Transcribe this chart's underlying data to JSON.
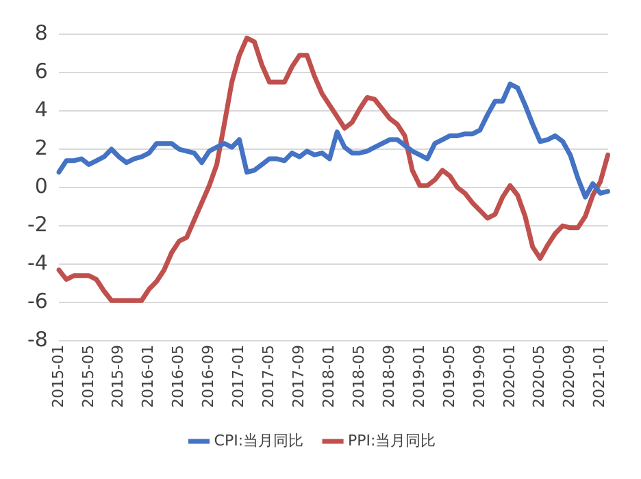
{
  "chart_data": {
    "type": "line",
    "categories": [
      "2015-01",
      null,
      null,
      null,
      "2015-05",
      null,
      null,
      null,
      "2015-09",
      null,
      null,
      null,
      "2016-01",
      null,
      null,
      null,
      "2016-05",
      null,
      null,
      null,
      "2016-09",
      null,
      null,
      null,
      "2017-01",
      null,
      null,
      null,
      "2017-05",
      null,
      null,
      null,
      "2017-09",
      null,
      null,
      null,
      "2018-01",
      null,
      null,
      null,
      "2018-05",
      null,
      null,
      null,
      "2018-09",
      null,
      null,
      null,
      "2019-01",
      null,
      null,
      null,
      "2019-05",
      null,
      null,
      null,
      "2019-09",
      null,
      null,
      null,
      "2020-01",
      null,
      null,
      null,
      "2020-05",
      null,
      null,
      null,
      "2020-09",
      null,
      null,
      null,
      "2021-01",
      null
    ],
    "series": [
      {
        "name": "CPI:当月同比",
        "color": "#4472c4",
        "values": [
          0.8,
          1.4,
          1.4,
          1.5,
          1.2,
          1.4,
          1.6,
          2.0,
          1.6,
          1.3,
          1.5,
          1.6,
          1.8,
          2.3,
          2.3,
          2.3,
          2.0,
          1.9,
          1.8,
          1.3,
          1.9,
          2.1,
          2.3,
          2.1,
          2.5,
          0.8,
          0.9,
          1.2,
          1.5,
          1.5,
          1.4,
          1.8,
          1.6,
          1.9,
          1.7,
          1.8,
          1.5,
          2.9,
          2.1,
          1.8,
          1.8,
          1.9,
          2.1,
          2.3,
          2.5,
          2.5,
          2.2,
          1.9,
          1.7,
          1.5,
          2.3,
          2.5,
          2.7,
          2.7,
          2.8,
          2.8,
          3.0,
          3.8,
          4.5,
          4.5,
          5.4,
          5.2,
          4.3,
          3.3,
          2.4,
          2.5,
          2.7,
          2.4,
          1.7,
          0.5,
          -0.5,
          0.2,
          -0.3,
          -0.2
        ]
      },
      {
        "name": "PPI:当月同比",
        "color": "#c0504d",
        "values": [
          -4.3,
          -4.8,
          -4.6,
          -4.6,
          -4.6,
          -4.8,
          -5.4,
          -5.9,
          -5.9,
          -5.9,
          -5.9,
          -5.9,
          -5.3,
          -4.9,
          -4.3,
          -3.4,
          -2.8,
          -2.6,
          -1.7,
          -0.8,
          0.1,
          1.2,
          3.3,
          5.5,
          6.9,
          7.8,
          7.6,
          6.4,
          5.5,
          5.5,
          5.5,
          6.3,
          6.9,
          6.9,
          5.8,
          4.9,
          4.3,
          3.7,
          3.1,
          3.4,
          4.1,
          4.7,
          4.6,
          4.1,
          3.6,
          3.3,
          2.7,
          0.9,
          0.1,
          0.1,
          0.4,
          0.9,
          0.6,
          0.0,
          -0.3,
          -0.8,
          -1.2,
          -1.6,
          -1.4,
          -0.5,
          0.1,
          -0.4,
          -1.5,
          -3.1,
          -3.7,
          -3.0,
          -2.4,
          -2.0,
          -2.1,
          -2.1,
          -1.5,
          -0.4,
          0.3,
          1.7
        ]
      }
    ],
    "ylim": [
      -8,
      8
    ],
    "yticks": [
      -8,
      -6,
      -4,
      -2,
      0,
      2,
      4,
      6,
      8
    ],
    "grid": "y",
    "legend": "bottom",
    "marker": "none",
    "line_style": "solid"
  }
}
